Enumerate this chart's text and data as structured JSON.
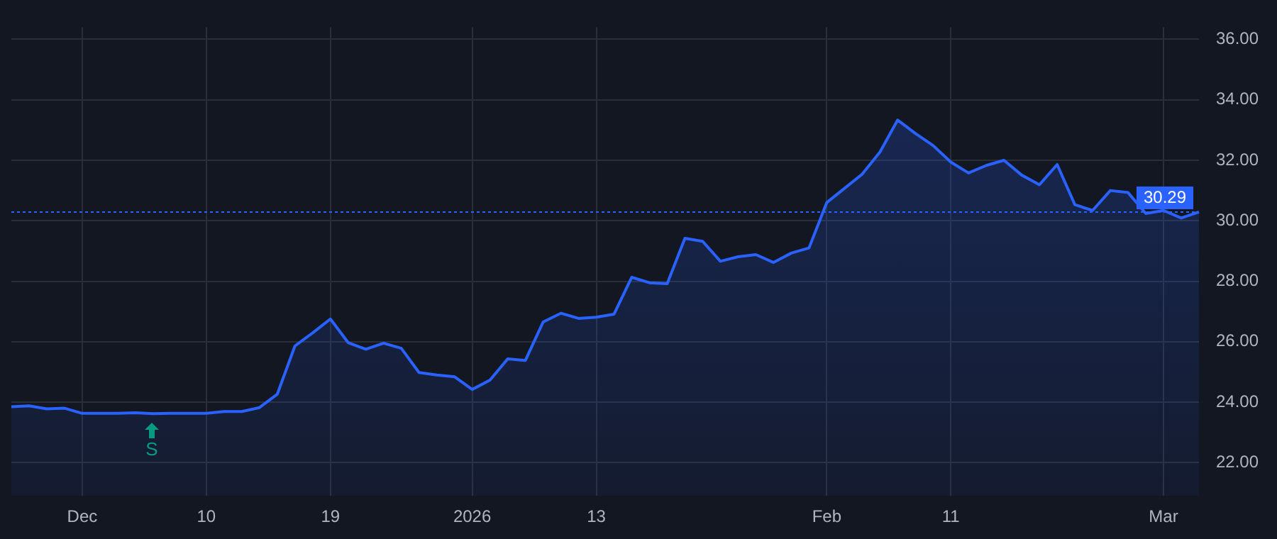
{
  "chart_data": {
    "type": "area",
    "categories": [
      null,
      null,
      null,
      null,
      "Dec",
      null,
      null,
      null,
      null,
      null,
      null,
      "10",
      null,
      null,
      null,
      null,
      null,
      null,
      "19",
      null,
      null,
      null,
      null,
      null,
      null,
      null,
      "2026",
      null,
      null,
      null,
      null,
      null,
      null,
      "13",
      null,
      null,
      null,
      null,
      null,
      null,
      null,
      null,
      null,
      null,
      null,
      null,
      "Feb",
      null,
      null,
      null,
      null,
      null,
      null,
      "11",
      null,
      null,
      null,
      null,
      null,
      null,
      null,
      null,
      null,
      null,
      null,
      "Mar",
      null,
      null
    ],
    "series": [
      {
        "color": "#2962ff",
        "values": [
          23.85,
          23.88,
          23.78,
          23.8,
          23.63,
          23.63,
          23.63,
          23.65,
          23.62,
          23.63,
          23.63,
          23.63,
          23.69,
          23.69,
          23.82,
          24.26,
          25.86,
          26.29,
          26.75,
          25.97,
          25.75,
          25.95,
          25.78,
          24.98,
          24.9,
          24.84,
          24.42,
          24.73,
          25.43,
          25.38,
          26.65,
          26.94,
          26.77,
          26.81,
          26.91,
          28.13,
          27.95,
          27.92,
          29.42,
          29.32,
          28.66,
          28.81,
          28.88,
          28.62,
          28.93,
          29.1,
          30.6,
          31.07,
          31.54,
          32.27,
          33.33,
          32.89,
          32.49,
          31.94,
          31.58,
          31.83,
          32.0,
          31.51,
          31.19,
          31.86,
          30.53,
          30.34,
          31.0,
          30.93,
          30.24,
          30.34,
          30.09,
          30.29
        ]
      }
    ],
    "ylim": [
      20.9,
      36.4
    ],
    "yticks": [
      {
        "value": 22,
        "label": "22.00"
      },
      {
        "value": 24,
        "label": "24.00"
      },
      {
        "value": 26,
        "label": "26.00"
      },
      {
        "value": 28,
        "label": "28.00"
      },
      {
        "value": 30,
        "label": "30.00"
      },
      {
        "value": 32,
        "label": "32.00"
      },
      {
        "value": 34,
        "label": "34.00"
      },
      {
        "value": 36,
        "label": "36.00"
      }
    ],
    "ref_lines": [
      {
        "axis": "y",
        "value": 30.29,
        "label": "30.29",
        "color": "#2962ff",
        "line_style": "dotted"
      }
    ],
    "annotations": [
      "S"
    ],
    "grid": true,
    "legend": false,
    "marker": "none"
  }
}
